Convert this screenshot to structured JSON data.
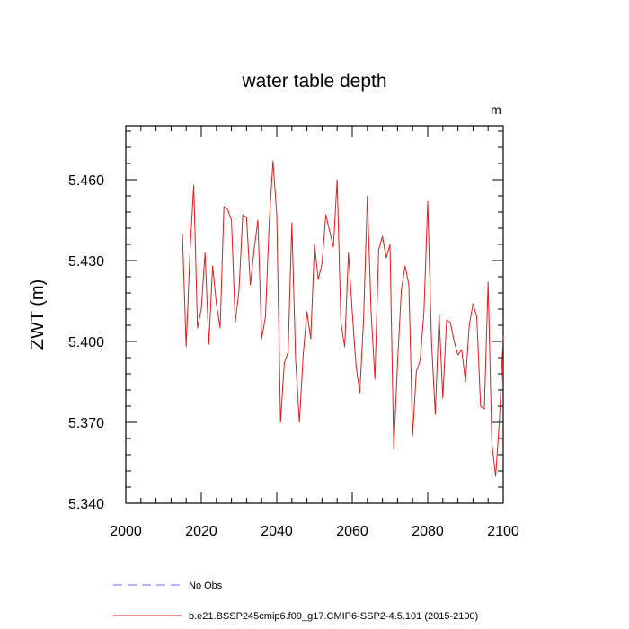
{
  "chart_data": {
    "type": "line",
    "title": "water table depth",
    "units_label": "m",
    "xlabel": "",
    "ylabel": "ZWT  (m)",
    "xlim": [
      2000,
      2100
    ],
    "ylim": [
      5.34,
      5.48
    ],
    "xticks": [
      2000,
      2020,
      2040,
      2060,
      2080,
      2100
    ],
    "xtick_labels": [
      "2000",
      "2020",
      "2040",
      "2060",
      "2080",
      "2100"
    ],
    "yticks": [
      5.34,
      5.37,
      5.4,
      5.43,
      5.46
    ],
    "ytick_labels": [
      "5.340",
      "5.370",
      "5.400",
      "5.430",
      "5.460"
    ],
    "grid": false,
    "legend_position": "bottom",
    "legend": [
      {
        "label": "No Obs",
        "color": "#6b6bf0",
        "dashed": true
      },
      {
        "label": "b.e21.BSSP245cmip6.f09_g17.CMIP6-SSP2-4.5.101 (2015-2100)",
        "color": "#e41a1c",
        "dashed": false
      }
    ],
    "series": [
      {
        "name": "b.e21.BSSP245cmip6.f09_g17.CMIP6-SSP2-4.5.101 (2015-2100)",
        "color": "#e41a1c",
        "x": [
          2015,
          2016,
          2017,
          2018,
          2019,
          2020,
          2021,
          2022,
          2023,
          2024,
          2025,
          2026,
          2027,
          2028,
          2029,
          2030,
          2031,
          2032,
          2033,
          2034,
          2035,
          2036,
          2037,
          2038,
          2039,
          2040,
          2041,
          2042,
          2043,
          2044,
          2045,
          2046,
          2047,
          2048,
          2049,
          2050,
          2051,
          2052,
          2053,
          2054,
          2055,
          2056,
          2057,
          2058,
          2059,
          2060,
          2061,
          2062,
          2063,
          2064,
          2065,
          2066,
          2067,
          2068,
          2069,
          2070,
          2071,
          2072,
          2073,
          2074,
          2075,
          2076,
          2077,
          2078,
          2079,
          2080,
          2081,
          2082,
          2083,
          2084,
          2085,
          2086,
          2087,
          2088,
          2089,
          2090,
          2091,
          2092,
          2093,
          2094,
          2095,
          2096,
          2097,
          2098,
          2099,
          2100
        ],
        "values": [
          5.44,
          5.398,
          5.433,
          5.458,
          5.405,
          5.412,
          5.433,
          5.399,
          5.428,
          5.414,
          5.405,
          5.45,
          5.449,
          5.445,
          5.407,
          5.419,
          5.447,
          5.446,
          5.421,
          5.434,
          5.445,
          5.401,
          5.409,
          5.444,
          5.467,
          5.447,
          5.37,
          5.392,
          5.396,
          5.444,
          5.393,
          5.37,
          5.395,
          5.411,
          5.401,
          5.436,
          5.423,
          5.429,
          5.447,
          5.441,
          5.435,
          5.46,
          5.407,
          5.398,
          5.433,
          5.411,
          5.391,
          5.381,
          5.408,
          5.454,
          5.411,
          5.386,
          5.434,
          5.439,
          5.431,
          5.436,
          5.36,
          5.392,
          5.419,
          5.428,
          5.421,
          5.365,
          5.389,
          5.393,
          5.411,
          5.452,
          5.4,
          5.373,
          5.41,
          5.379,
          5.408,
          5.407,
          5.4,
          5.395,
          5.397,
          5.385,
          5.406,
          5.414,
          5.409,
          5.376,
          5.375,
          5.422,
          5.362,
          5.35,
          5.371,
          5.402
        ]
      }
    ]
  }
}
